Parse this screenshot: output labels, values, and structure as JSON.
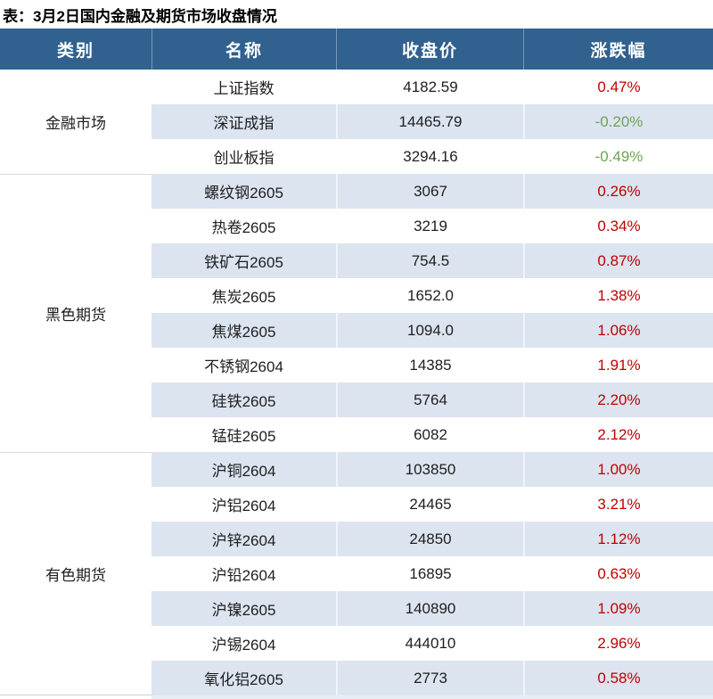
{
  "title": "表：3月2日国内金融及期货市场收盘情况",
  "table": {
    "headers": [
      "类别",
      "名称",
      "收盘价",
      "涨跌幅"
    ],
    "groups": [
      {
        "category": "金融市场",
        "rows": [
          {
            "name": "上证指数",
            "close": "4182.59",
            "change": "0.47%",
            "direction": "up"
          },
          {
            "name": "深证成指",
            "close": "14465.79",
            "change": "-0.20%",
            "direction": "down"
          },
          {
            "name": "创业板指",
            "close": "3294.16",
            "change": "-0.49%",
            "direction": "down"
          }
        ]
      },
      {
        "category": "黑色期货",
        "rows": [
          {
            "name": "螺纹钢2605",
            "close": "3067",
            "change": "0.26%",
            "direction": "up"
          },
          {
            "name": "热卷2605",
            "close": "3219",
            "change": "0.34%",
            "direction": "up"
          },
          {
            "name": "铁矿石2605",
            "close": "754.5",
            "change": "0.87%",
            "direction": "up"
          },
          {
            "name": "焦炭2605",
            "close": "1652.0",
            "change": "1.38%",
            "direction": "up"
          },
          {
            "name": "焦煤2605",
            "close": "1094.0",
            "change": "1.06%",
            "direction": "up"
          },
          {
            "name": "不锈钢2604",
            "close": "14385",
            "change": "1.91%",
            "direction": "up"
          },
          {
            "name": "硅铁2605",
            "close": "5764",
            "change": "2.20%",
            "direction": "up"
          },
          {
            "name": "锰硅2605",
            "close": "6082",
            "change": "2.12%",
            "direction": "up"
          }
        ]
      },
      {
        "category": "有色期货",
        "rows": [
          {
            "name": "沪铜2604",
            "close": "103850",
            "change": "1.00%",
            "direction": "up"
          },
          {
            "name": "沪铝2604",
            "close": "24465",
            "change": "3.21%",
            "direction": "up"
          },
          {
            "name": "沪锌2604",
            "close": "24850",
            "change": "1.12%",
            "direction": "up"
          },
          {
            "name": "沪铅2604",
            "close": "16895",
            "change": "0.63%",
            "direction": "up"
          },
          {
            "name": "沪镍2605",
            "close": "140890",
            "change": "1.09%",
            "direction": "up"
          },
          {
            "name": "沪锡2604",
            "close": "444010",
            "change": "2.96%",
            "direction": "up"
          },
          {
            "name": "氧化铝2605",
            "close": "2773",
            "change": "0.58%",
            "direction": "up"
          }
        ]
      }
    ]
  },
  "colors": {
    "header_bg": "#30618F",
    "stripe_bg": "#DCE4F0",
    "up_red": "#C00000",
    "down_green": "#6FA355"
  }
}
